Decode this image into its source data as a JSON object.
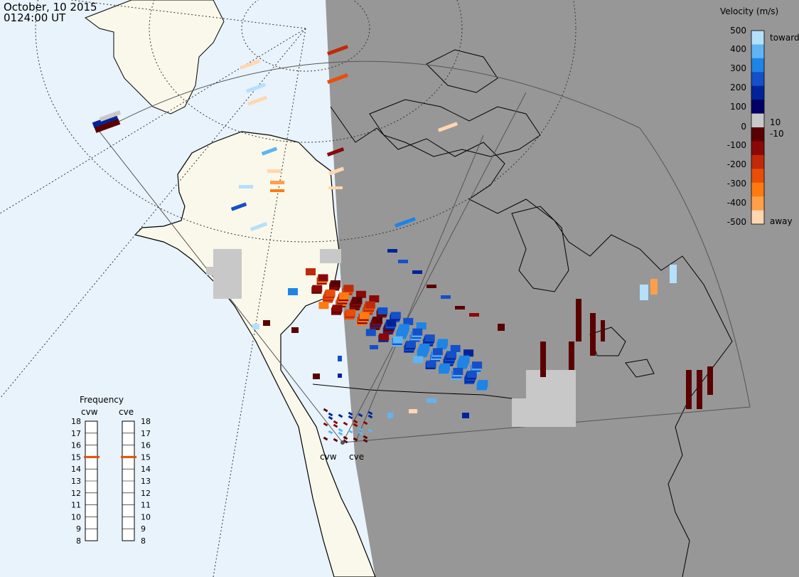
{
  "title": {
    "date": "October, 10 2015",
    "time": "0124:00 UT"
  },
  "colorbar": {
    "title": "Velocity (m/s)",
    "ticks": [
      "500",
      "400",
      "300",
      "200",
      "100",
      "10",
      "0",
      "-10",
      "-100",
      "-200",
      "-300",
      "-400",
      "-500"
    ],
    "toward_label": "toward",
    "away_label": "away",
    "colors": [
      "#ffd7b0",
      "#ff9f4a",
      "#ff7a10",
      "#e84e0a",
      "#c02a08",
      "#8b0808",
      "#5a0000",
      "#c8c8c8",
      "#000066",
      "#00239a",
      "#1450c8",
      "#1e84e6",
      "#60b4f4",
      "#b4e0fc"
    ]
  },
  "frequency": {
    "title": "Frequency",
    "left_radar": "cvw",
    "right_radar": "cve",
    "ticks": [
      "18",
      "17",
      "16",
      "15",
      "14",
      "13",
      "12",
      "11",
      "10",
      "9",
      "8"
    ],
    "left_value": 15,
    "right_value": 15,
    "marker_color": "#e05010"
  },
  "radars": [
    {
      "name": "cvw",
      "label": "cvw"
    },
    {
      "name": "cve",
      "label": "cve"
    }
  ],
  "map_colors": {
    "ocean": "#e8f3fc",
    "land": "#faf8ea",
    "night": "#979797",
    "scatter": "#c8c8c8"
  }
}
